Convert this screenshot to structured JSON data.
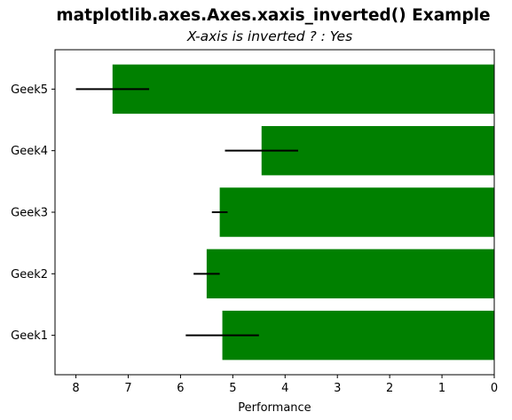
{
  "chart_data": {
    "type": "bar",
    "orientation": "horizontal",
    "suptitle": "matplotlib.axes.Axes.xaxis_inverted() Example",
    "title": "X-axis is inverted ? : Yes",
    "xlabel": "Performance",
    "ylabel": "",
    "categories": [
      "Geek1",
      "Geek2",
      "Geek3",
      "Geek4",
      "Geek5"
    ],
    "values": [
      5.2,
      5.5,
      5.25,
      4.45,
      7.3
    ],
    "errors": [
      0.7,
      0.25,
      0.15,
      0.7,
      0.7
    ],
    "xlim": [
      8.4,
      0
    ],
    "x_inverted": true,
    "xticks": [
      8,
      7,
      6,
      5,
      4,
      3,
      2,
      1,
      0
    ],
    "bar_color": "#008000",
    "error_color": "#000000",
    "grid": false,
    "legend": "none"
  }
}
